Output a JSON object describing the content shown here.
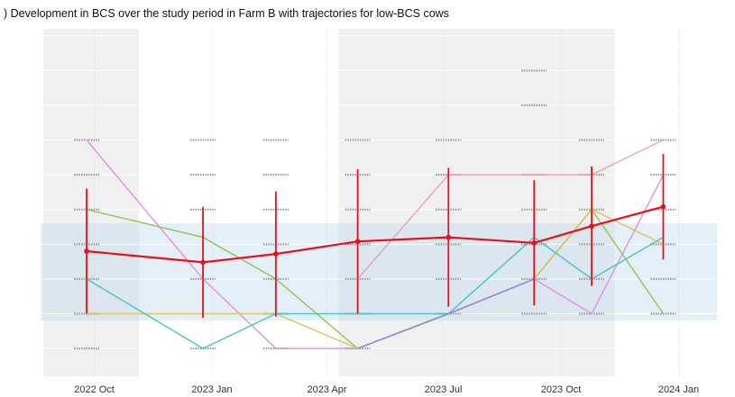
{
  "chart_data": {
    "type": "line",
    "title": ") Development in BCS over the study period in Farm B with trajectories for low-BCS cows",
    "xlabel": "",
    "ylabel": "",
    "x_tick_labels": [
      "2022 Oct",
      "2023 Jan",
      "2023 Apr",
      "2023 Jul",
      "2023 Oct",
      "2024 Jan"
    ],
    "x_ticks": [
      "2022-10-01",
      "2023-01-01",
      "2023-04-01",
      "2023-07-01",
      "2023-10-01",
      "2024-01-01"
    ],
    "xlim": [
      "2022-08-20",
      "2024-01-31"
    ],
    "ylim": [
      2.3,
      4.8
    ],
    "y_tick_labels_visible": false,
    "grid": true,
    "shaded_time_bands": [
      {
        "from": "2022-08-22",
        "to": "2022-11-05"
      },
      {
        "from": "2023-04-10",
        "to": "2023-11-12"
      }
    ],
    "shaded_value_band": {
      "from": 2.7,
      "to": 3.4
    },
    "visit_dates": [
      "2022-09-25",
      "2022-12-25",
      "2023-02-20",
      "2023-04-25",
      "2023-07-05",
      "2023-09-10",
      "2023-10-25",
      "2023-12-20"
    ],
    "mean_series": {
      "color": "#e8101a",
      "mean": [
        3.2,
        3.12,
        3.18,
        3.27,
        3.3,
        3.26,
        3.38,
        3.52
      ],
      "sd": [
        0.45,
        0.4,
        0.45,
        0.52,
        0.5,
        0.45,
        0.43,
        0.38
      ]
    },
    "observed_scores": [
      [
        2.5,
        2.75,
        3.0,
        3.25,
        3.5,
        3.75,
        4.0
      ],
      [
        2.5,
        3.0,
        3.5,
        3.75,
        4.0
      ],
      [
        2.5,
        2.75,
        3.0,
        3.25,
        3.5,
        3.75,
        4.0
      ],
      [
        2.5,
        2.75,
        3.0,
        3.25,
        3.5,
        3.75,
        4.0
      ],
      [
        2.75,
        3.0,
        3.25,
        3.5,
        3.75,
        4.0
      ],
      [
        2.75,
        3.0,
        3.25,
        3.5,
        3.75,
        4.25,
        4.5
      ],
      [
        2.75,
        3.0,
        3.25,
        3.5,
        3.75,
        4.0
      ],
      [
        2.75,
        3.0,
        3.25,
        3.5,
        3.75,
        4.0
      ]
    ],
    "series": [
      {
        "color": "#e8a0b4",
        "values": [
          2.5,
          null,
          null,
          3.0,
          3.75,
          3.75,
          3.75,
          4.0
        ]
      },
      {
        "color": "#e28be0",
        "values": [
          4.0,
          3.0,
          2.5,
          2.5,
          2.75,
          3.0,
          2.75,
          3.75
        ]
      },
      {
        "color": "#8fc146",
        "values": [
          3.5,
          3.3,
          3.0,
          2.5,
          2.75,
          3.0,
          3.5,
          2.75
        ]
      },
      {
        "color": "#d9c15a",
        "values": [
          2.75,
          2.75,
          2.75,
          2.5,
          2.75,
          3.0,
          3.5,
          3.25
        ]
      },
      {
        "color": "#3fc1c4",
        "values": [
          3.0,
          2.5,
          2.75,
          2.75,
          2.75,
          3.3,
          3.0,
          3.3
        ]
      },
      {
        "color": "#8b84e0",
        "values": [
          null,
          null,
          null,
          2.5,
          2.75,
          3.0,
          null,
          null
        ]
      }
    ]
  }
}
